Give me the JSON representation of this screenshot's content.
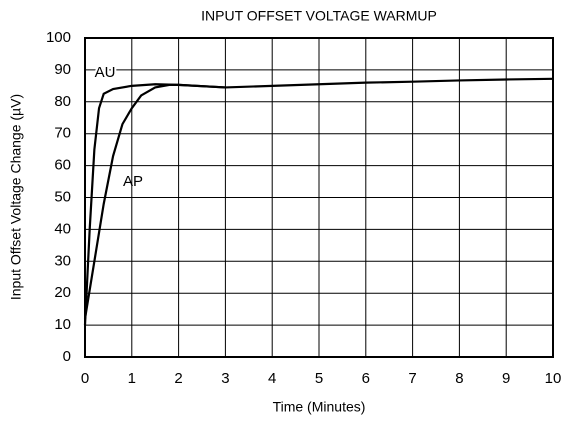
{
  "chart_data": {
    "type": "line",
    "title": "INPUT OFFSET VOLTAGE WARMUP",
    "xlabel": "Time (Minutes)",
    "ylabel": "Input Offset Voltage Change (µV)",
    "xlim": [
      0,
      10
    ],
    "ylim": [
      0,
      100
    ],
    "xticks": [
      0,
      1,
      2,
      3,
      4,
      5,
      6,
      7,
      8,
      9,
      10
    ],
    "yticks": [
      0,
      10,
      20,
      30,
      40,
      50,
      60,
      70,
      80,
      90,
      100
    ],
    "grid": true,
    "series": [
      {
        "name": "AU",
        "color": "#000000",
        "x": [
          0,
          0.1,
          0.2,
          0.3,
          0.4,
          0.6,
          1,
          1.5,
          2,
          3,
          4,
          5,
          6,
          7,
          8,
          9,
          10
        ],
        "values": [
          10,
          40,
          65,
          78,
          82.5,
          84,
          85,
          85.5,
          85.3,
          84.5,
          85,
          85.5,
          86,
          86.3,
          86.7,
          87,
          87.2
        ]
      },
      {
        "name": "AP",
        "color": "#000000",
        "x": [
          0,
          0.2,
          0.4,
          0.6,
          0.8,
          1,
          1.2,
          1.5,
          1.8,
          2,
          3
        ],
        "values": [
          12,
          30,
          48,
          63,
          73,
          78,
          82,
          84.5,
          85.3,
          85.3,
          84.5
        ]
      }
    ]
  }
}
